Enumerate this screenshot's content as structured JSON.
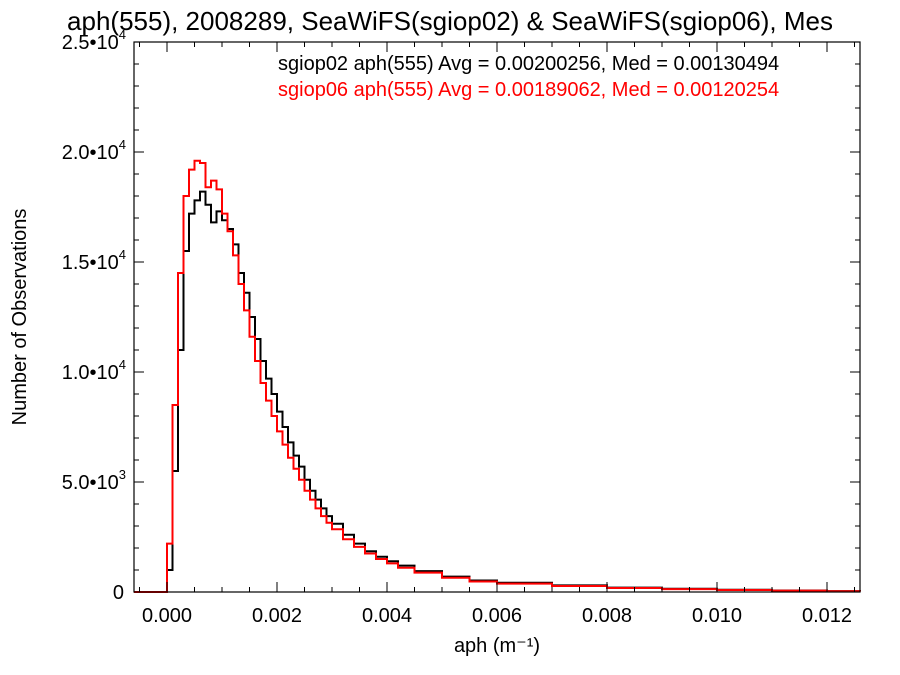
{
  "chart_data": {
    "type": "line",
    "title": "aph(555), 2008289, SeaWiFS(sgiop02) & SeaWiFS(sgiop06), Mes",
    "xlabel": "aph (m⁻¹)",
    "ylabel": "Number of Observations",
    "xlim": [
      -0.0006,
      0.0126
    ],
    "ylim": [
      0,
      25000
    ],
    "xticks": [
      0.0,
      0.002,
      0.004,
      0.006,
      0.008,
      0.01,
      0.012
    ],
    "xtick_labels": [
      "0.000",
      "0.002",
      "0.004",
      "0.006",
      "0.008",
      "0.010",
      "0.012"
    ],
    "yticks": [
      0,
      5000,
      10000,
      15000,
      20000,
      25000
    ],
    "ytick_labels": [
      {
        "mantissa": "0",
        "exponent": ""
      },
      {
        "mantissa": "5.0•10",
        "exponent": "3"
      },
      {
        "mantissa": "1.0•10",
        "exponent": "4"
      },
      {
        "mantissa": "1.5•10",
        "exponent": "4"
      },
      {
        "mantissa": "2.0•10",
        "exponent": "4"
      },
      {
        "mantissa": "2.5•10",
        "exponent": "4"
      }
    ],
    "grid": false,
    "style": "step",
    "annotations": [
      {
        "text": "sgiop02 aph(555) Avg = 0.00200256, Med = 0.00130494",
        "color": "#000000"
      },
      {
        "text": "sgiop06 aph(555) Avg = 0.00189062, Med = 0.00120254",
        "color": "#ff0000"
      }
    ],
    "series": [
      {
        "color": "#000000",
        "x": [
          -0.0006,
          -0.0001,
          0.0,
          0.0001,
          0.0002,
          0.0003,
          0.0004,
          0.0005,
          0.0006,
          0.0007,
          0.0008,
          0.0009,
          0.001,
          0.0011,
          0.0012,
          0.0013,
          0.0014,
          0.0015,
          0.0016,
          0.0017,
          0.0018,
          0.0019,
          0.002,
          0.0021,
          0.0022,
          0.0023,
          0.0024,
          0.0025,
          0.0026,
          0.0027,
          0.0028,
          0.0029,
          0.003,
          0.0032,
          0.0034,
          0.0036,
          0.0038,
          0.004,
          0.0042,
          0.0045,
          0.005,
          0.0055,
          0.006,
          0.007,
          0.008,
          0.009,
          0.01,
          0.011,
          0.012,
          0.0126
        ],
        "y": [
          0,
          0,
          1000,
          5500,
          11000,
          15500,
          17200,
          17800,
          18200,
          17600,
          16800,
          17300,
          16900,
          16500,
          15800,
          14500,
          13600,
          12500,
          11500,
          10500,
          9700,
          9000,
          8200,
          7500,
          6800,
          6200,
          5700,
          5100,
          4600,
          4200,
          3800,
          3450,
          3100,
          2600,
          2200,
          1850,
          1600,
          1400,
          1200,
          950,
          700,
          520,
          420,
          300,
          200,
          150,
          100,
          70,
          40,
          30
        ]
      },
      {
        "color": "#ff0000",
        "x": [
          -0.0006,
          -0.0001,
          0.0,
          0.0001,
          0.0002,
          0.0003,
          0.0004,
          0.0005,
          0.0006,
          0.0007,
          0.0008,
          0.0009,
          0.001,
          0.0011,
          0.0012,
          0.0013,
          0.0014,
          0.0015,
          0.0016,
          0.0017,
          0.0018,
          0.0019,
          0.002,
          0.0021,
          0.0022,
          0.0023,
          0.0024,
          0.0025,
          0.0026,
          0.0027,
          0.0028,
          0.0029,
          0.003,
          0.0032,
          0.0034,
          0.0036,
          0.0038,
          0.004,
          0.0042,
          0.0045,
          0.005,
          0.0055,
          0.006,
          0.007,
          0.008,
          0.009,
          0.01,
          0.011,
          0.012,
          0.0126
        ],
        "y": [
          0,
          0,
          2200,
          8500,
          14500,
          18000,
          19200,
          19600,
          19500,
          18400,
          18700,
          18300,
          17200,
          16400,
          15300,
          14000,
          12800,
          11600,
          10500,
          9500,
          8700,
          8000,
          7300,
          6700,
          6100,
          5600,
          5100,
          4600,
          4200,
          3800,
          3450,
          3150,
          2850,
          2400,
          2050,
          1750,
          1500,
          1300,
          1100,
          880,
          650,
          480,
          380,
          270,
          180,
          130,
          90,
          60,
          35,
          25
        ]
      }
    ]
  }
}
